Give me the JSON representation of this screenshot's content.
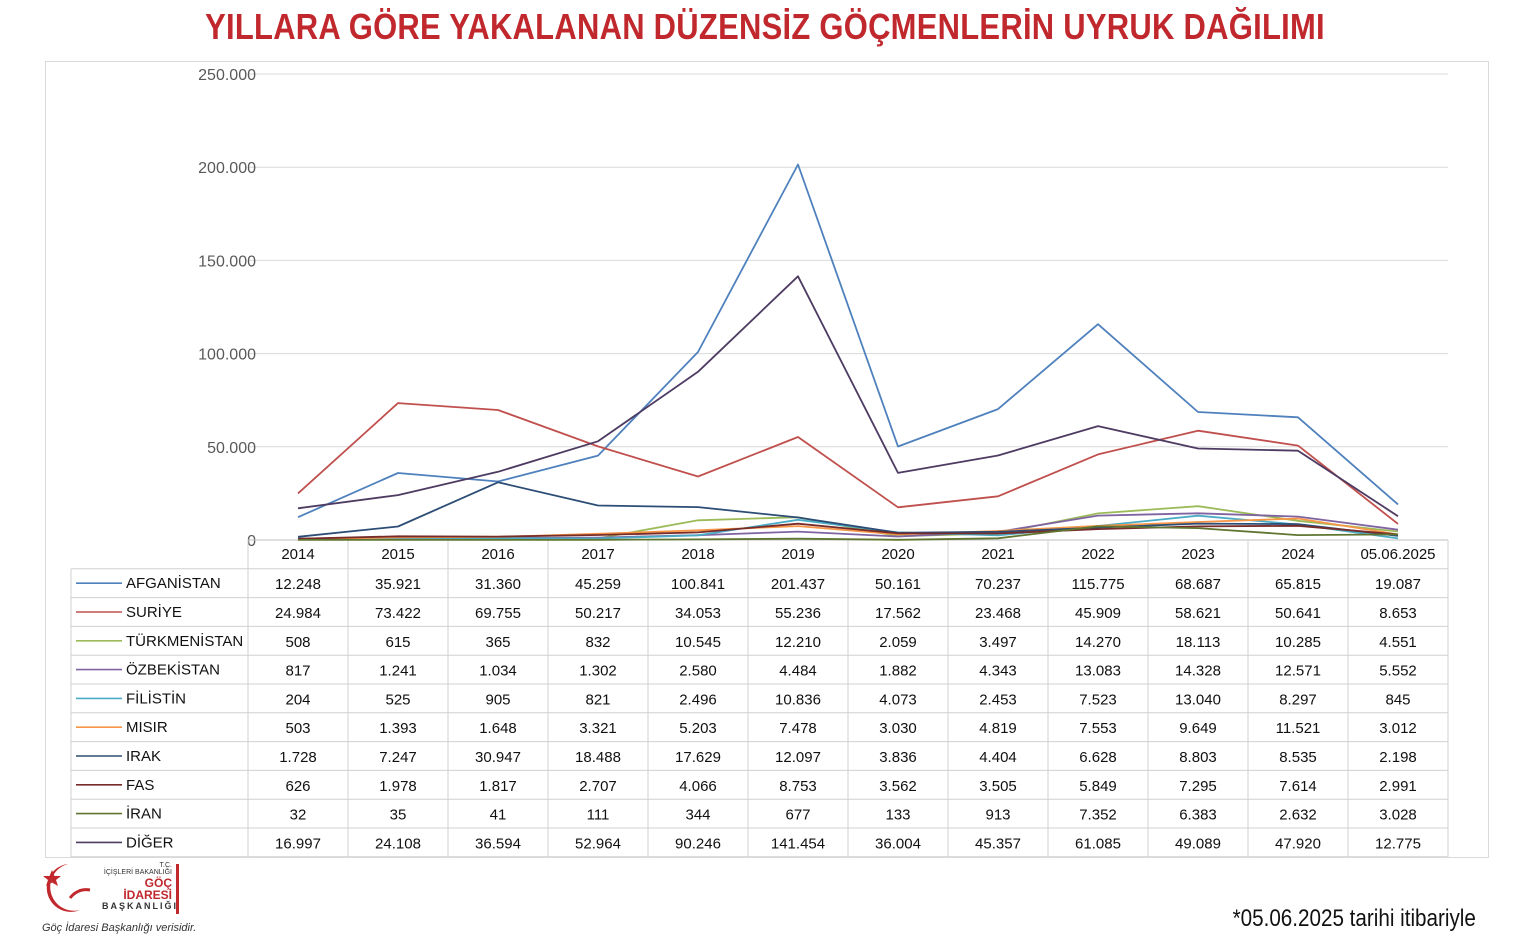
{
  "title": "YILLARA GÖRE YAKALANAN DÜZENSİZ GÖÇMENLERİN UYRUK DAĞILIMI",
  "footnote": "*05.06.2025 tarihi itibariyle",
  "logo": {
    "line1": "T.C.",
    "line2": "İÇİŞLERİ BAKANLIĞI",
    "line3": "GÖÇ İDARESİ",
    "line4": "BAŞKANLIĞI",
    "caption": "Göç İdaresi Başkanlığı verisidir.",
    "color": "#c0282d"
  },
  "chart_data": {
    "type": "line",
    "ylim": [
      0,
      250000
    ],
    "yticks": [
      0,
      50000,
      100000,
      150000,
      200000,
      250000
    ],
    "ytick_labels": [
      "0",
      "50.000",
      "100.000",
      "150.000",
      "200.000",
      "250.000"
    ],
    "grid": true,
    "legend": "data-table-below",
    "categories": [
      "2014",
      "2015",
      "2016",
      "2017",
      "2018",
      "2019",
      "2020",
      "2021",
      "2022",
      "2023",
      "2024",
      "05.06.2025"
    ],
    "series": [
      {
        "name": "AFGANİSTAN",
        "color": "#4f81bd",
        "values": [
          12248,
          35921,
          31360,
          45259,
          100841,
          201437,
          50161,
          70237,
          115775,
          68687,
          65815,
          19087
        ],
        "labels": [
          "12.248",
          "35.921",
          "31.360",
          "45.259",
          "100.841",
          "201.437",
          "50.161",
          "70.237",
          "115.775",
          "68.687",
          "65.815",
          "19.087"
        ]
      },
      {
        "name": "SURİYE",
        "color": "#c0504d",
        "values": [
          24984,
          73422,
          69755,
          50217,
          34053,
          55236,
          17562,
          23468,
          45909,
          58621,
          50641,
          8653
        ],
        "labels": [
          "24.984",
          "73.422",
          "69.755",
          "50.217",
          "34.053",
          "55.236",
          "17.562",
          "23.468",
          "45.909",
          "58.621",
          "50.641",
          "8.653"
        ]
      },
      {
        "name": "TÜRKMENİSTAN",
        "color": "#9bbb59",
        "values": [
          508,
          615,
          365,
          832,
          10545,
          12210,
          2059,
          3497,
          14270,
          18113,
          10285,
          4551
        ],
        "labels": [
          "508",
          "615",
          "365",
          "832",
          "10.545",
          "12.210",
          "2.059",
          "3.497",
          "14.270",
          "18.113",
          "10.285",
          "4.551"
        ]
      },
      {
        "name": "ÖZBEKİSTAN",
        "color": "#8064a2",
        "values": [
          817,
          1241,
          1034,
          1302,
          2580,
          4484,
          1882,
          4343,
          13083,
          14328,
          12571,
          5552
        ],
        "labels": [
          "817",
          "1.241",
          "1.034",
          "1.302",
          "2.580",
          "4.484",
          "1.882",
          "4.343",
          "13.083",
          "14.328",
          "12.571",
          "5.552"
        ]
      },
      {
        "name": "FİLİSTİN",
        "color": "#4bacc6",
        "values": [
          204,
          525,
          905,
          821,
          2496,
          10836,
          4073,
          2453,
          7523,
          13040,
          8297,
          845
        ],
        "labels": [
          "204",
          "525",
          "905",
          "821",
          "2.496",
          "10.836",
          "4.073",
          "2.453",
          "7.523",
          "13.040",
          "8.297",
          "845"
        ]
      },
      {
        "name": "MISIR",
        "color": "#f79646",
        "values": [
          503,
          1393,
          1648,
          3321,
          5203,
          7478,
          3030,
          4819,
          7553,
          9649,
          11521,
          3012
        ],
        "labels": [
          "503",
          "1.393",
          "1.648",
          "3.321",
          "5.203",
          "7.478",
          "3.030",
          "4.819",
          "7.553",
          "9.649",
          "11.521",
          "3.012"
        ]
      },
      {
        "name": "IRAK",
        "color": "#2c4d75",
        "values": [
          1728,
          7247,
          30947,
          18488,
          17629,
          12097,
          3836,
          4404,
          6628,
          8803,
          8535,
          2198
        ],
        "labels": [
          "1.728",
          "7.247",
          "30.947",
          "18.488",
          "17.629",
          "12.097",
          "3.836",
          "4.404",
          "6.628",
          "8.803",
          "8.535",
          "2.198"
        ]
      },
      {
        "name": "FAS",
        "color": "#772c2a",
        "values": [
          626,
          1978,
          1817,
          2707,
          4066,
          8753,
          3562,
          3505,
          5849,
          7295,
          7614,
          2991
        ],
        "labels": [
          "626",
          "1.978",
          "1.817",
          "2.707",
          "4.066",
          "8.753",
          "3.562",
          "3.505",
          "5.849",
          "7.295",
          "7.614",
          "2.991"
        ]
      },
      {
        "name": "İRAN",
        "color": "#5f7530",
        "values": [
          32,
          35,
          41,
          111,
          344,
          677,
          133,
          913,
          7352,
          6383,
          2632,
          3028
        ],
        "labels": [
          "32",
          "35",
          "41",
          "111",
          "344",
          "677",
          "133",
          "913",
          "7.352",
          "6.383",
          "2.632",
          "3.028"
        ]
      },
      {
        "name": "DİĞER",
        "color": "#4d3b62",
        "values": [
          16997,
          24108,
          36594,
          52964,
          90246,
          141454,
          36004,
          45357,
          61085,
          49089,
          47920,
          12775
        ],
        "labels": [
          "16.997",
          "24.108",
          "36.594",
          "52.964",
          "90.246",
          "141.454",
          "36.004",
          "45.357",
          "61.085",
          "49.089",
          "47.920",
          "12.775"
        ]
      }
    ]
  }
}
